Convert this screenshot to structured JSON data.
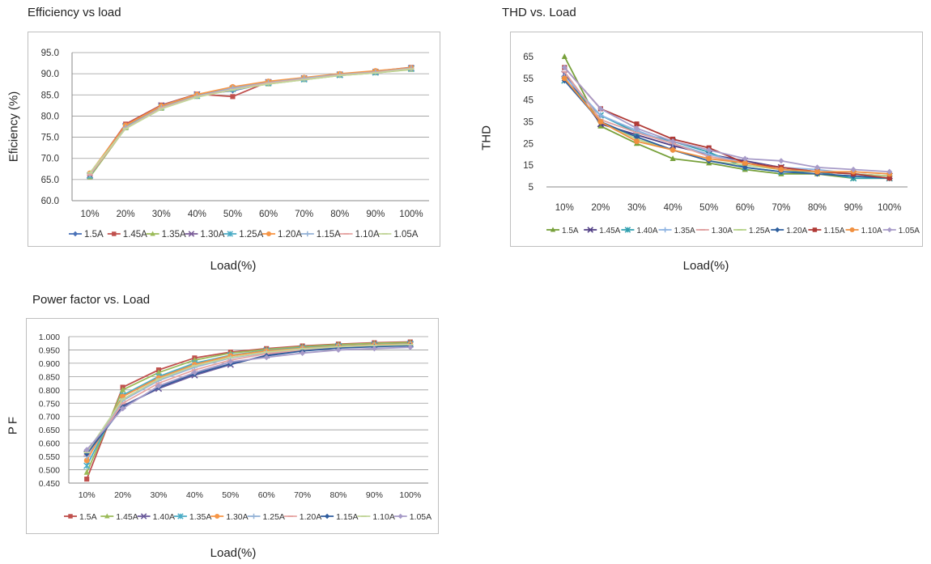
{
  "chart_data": [
    {
      "type": "line",
      "title": "Efficiency vs load",
      "xlabel": "Load(%)",
      "ylabel": "Eficiency (%)",
      "ylim": [
        60,
        95
      ],
      "ytick_step": 5,
      "ytick_labels": [
        "60.0",
        "65.0",
        "70.0",
        "75.0",
        "80.0",
        "85.0",
        "90.0",
        "95.0"
      ],
      "categories": [
        "10%",
        "20%",
        "30%",
        "40%",
        "50%",
        "60%",
        "70%",
        "80%",
        "90%",
        "100%"
      ],
      "grid": true,
      "legend": "bottom",
      "series": [
        {
          "name": "1.5A",
          "color": "#4a72b8",
          "marker": "diamond",
          "values": [
            65.8,
            77.8,
            82.3,
            85.0,
            86.0,
            87.8,
            88.8,
            89.7,
            90.5,
            91.3
          ]
        },
        {
          "name": "1.45A",
          "color": "#c0504d",
          "marker": "square",
          "values": [
            66.3,
            78.1,
            82.6,
            85.2,
            84.6,
            88.1,
            89.0,
            89.9,
            90.6,
            91.5
          ]
        },
        {
          "name": "1.35A",
          "color": "#9bbb59",
          "marker": "triangle",
          "values": [
            65.6,
            77.2,
            81.8,
            84.6,
            86.3,
            87.6,
            88.6,
            89.6,
            90.2,
            91.0
          ]
        },
        {
          "name": "1.30A",
          "color": "#7a5c98",
          "marker": "x",
          "values": [
            66.0,
            77.6,
            82.5,
            85.1,
            86.5,
            88.0,
            88.9,
            89.8,
            90.4,
            91.3
          ]
        },
        {
          "name": "1.25A",
          "color": "#4bacc6",
          "marker": "star",
          "values": [
            65.9,
            77.5,
            82.1,
            84.8,
            86.4,
            87.8,
            88.7,
            89.7,
            90.3,
            91.2
          ]
        },
        {
          "name": "1.20A",
          "color": "#f79646",
          "marker": "circle",
          "values": [
            66.5,
            77.8,
            82.4,
            85.1,
            86.9,
            88.2,
            89.1,
            90.0,
            90.7,
            91.4
          ]
        },
        {
          "name": "1.15A",
          "color": "#95b3d7",
          "marker": "plus",
          "values": [
            66.2,
            77.3,
            82.0,
            84.7,
            86.6,
            87.9,
            88.9,
            89.8,
            90.4,
            91.3
          ]
        },
        {
          "name": "1.10A",
          "color": "#e6a5a3",
          "marker": "dash",
          "values": [
            66.1,
            77.1,
            81.9,
            84.6,
            86.3,
            87.8,
            88.7,
            89.7,
            90.3,
            91.2
          ]
        },
        {
          "name": "1.05A",
          "color": "#c3d69b",
          "marker": "dash",
          "values": [
            66.6,
            77.0,
            81.7,
            84.5,
            86.2,
            87.6,
            88.6,
            89.6,
            90.2,
            91.1
          ]
        }
      ]
    },
    {
      "type": "line",
      "title": "THD vs. Load",
      "xlabel": "Load(%)",
      "ylabel": "THD",
      "ylim": [
        5,
        65
      ],
      "ytick_step": 10,
      "ytick_labels": [
        "5",
        "15",
        "25",
        "35",
        "45",
        "55",
        "65"
      ],
      "categories": [
        "10%",
        "20%",
        "30%",
        "40%",
        "50%",
        "60%",
        "70%",
        "80%",
        "90%",
        "100%"
      ],
      "grid": false,
      "legend": "bottom",
      "series": [
        {
          "name": "1.5A",
          "color": "#77a03a",
          "marker": "triangle",
          "values": [
            65,
            33,
            25,
            18,
            16,
            13,
            11,
            11,
            9,
            9
          ]
        },
        {
          "name": "1.45A",
          "color": "#4f3d83",
          "marker": "x",
          "values": [
            57,
            34,
            29,
            24,
            20,
            17,
            14,
            12,
            11,
            10
          ]
        },
        {
          "name": "1.40A",
          "color": "#31a0b0",
          "marker": "star",
          "values": [
            54,
            38,
            30,
            26,
            21,
            14,
            12,
            12,
            9,
            9
          ]
        },
        {
          "name": "1.35A",
          "color": "#8db3e2",
          "marker": "plus",
          "values": [
            56,
            38,
            31,
            25,
            20,
            16,
            14,
            13,
            11,
            10
          ]
        },
        {
          "name": "1.30A",
          "color": "#e0a0a0",
          "marker": "dash",
          "values": [
            58,
            36,
            30,
            25,
            19,
            16,
            14,
            12,
            11,
            10
          ]
        },
        {
          "name": "1.25A",
          "color": "#b7d38a",
          "marker": "dash",
          "values": [
            55,
            35,
            27,
            22,
            17,
            15,
            13,
            12,
            11,
            10
          ]
        },
        {
          "name": "1.20A",
          "color": "#2e5f9e",
          "marker": "diamond",
          "values": [
            54,
            35,
            28,
            22,
            17,
            14,
            12,
            11,
            10,
            9
          ]
        },
        {
          "name": "1.15A",
          "color": "#b03a36",
          "marker": "square",
          "values": [
            60,
            41,
            34,
            27,
            23,
            16,
            14,
            12,
            11,
            9
          ]
        },
        {
          "name": "1.10A",
          "color": "#f09040",
          "marker": "circle",
          "values": [
            55,
            35,
            26,
            22,
            18,
            16,
            13,
            12,
            12,
            11
          ]
        },
        {
          "name": "1.05A",
          "color": "#a79bc8",
          "marker": "diamond",
          "values": [
            60,
            41,
            32,
            26,
            22,
            18,
            17,
            14,
            13,
            12
          ]
        }
      ]
    },
    {
      "type": "line",
      "title": "Power factor vs. Load",
      "xlabel": "Load(%)",
      "ylabel": "PF",
      "ylim": [
        0.45,
        1.0
      ],
      "ytick_step": 0.05,
      "ytick_labels": [
        "0.450",
        "0.500",
        "0.550",
        "0.600",
        "0.650",
        "0.700",
        "0.750",
        "0.800",
        "0.850",
        "0.900",
        "0.950",
        "1.000"
      ],
      "categories": [
        "10%",
        "20%",
        "30%",
        "40%",
        "50%",
        "60%",
        "70%",
        "80%",
        "90%",
        "100%"
      ],
      "grid": true,
      "legend": "bottom",
      "series": [
        {
          "name": "1.5A",
          "color": "#c0504d",
          "marker": "square",
          "values": [
            0.465,
            0.81,
            0.875,
            0.92,
            0.942,
            0.955,
            0.965,
            0.972,
            0.977,
            0.98
          ]
        },
        {
          "name": "1.45A",
          "color": "#9bbb59",
          "marker": "triangle",
          "values": [
            0.49,
            0.8,
            0.865,
            0.912,
            0.938,
            0.952,
            0.962,
            0.97,
            0.975,
            0.978
          ]
        },
        {
          "name": "1.40A",
          "color": "#6a5a9b",
          "marker": "x",
          "values": [
            0.56,
            0.74,
            0.805,
            0.855,
            0.895,
            0.93,
            0.95,
            0.96,
            0.966,
            0.97
          ]
        },
        {
          "name": "1.35A",
          "color": "#4bacc6",
          "marker": "star",
          "values": [
            0.515,
            0.78,
            0.85,
            0.9,
            0.93,
            0.948,
            0.958,
            0.965,
            0.97,
            0.973
          ]
        },
        {
          "name": "1.30A",
          "color": "#f79646",
          "marker": "circle",
          "values": [
            0.535,
            0.775,
            0.845,
            0.895,
            0.928,
            0.946,
            0.956,
            0.964,
            0.969,
            0.972
          ]
        },
        {
          "name": "1.25A",
          "color": "#95b3d7",
          "marker": "plus",
          "values": [
            0.55,
            0.76,
            0.835,
            0.885,
            0.92,
            0.94,
            0.953,
            0.962,
            0.967,
            0.97
          ]
        },
        {
          "name": "1.20A",
          "color": "#e6a5a3",
          "marker": "dash",
          "values": [
            0.555,
            0.75,
            0.825,
            0.875,
            0.912,
            0.936,
            0.95,
            0.96,
            0.965,
            0.968
          ]
        },
        {
          "name": "1.15A",
          "color": "#2f5d9e",
          "marker": "diamond",
          "values": [
            0.56,
            0.735,
            0.81,
            0.86,
            0.898,
            0.928,
            0.946,
            0.957,
            0.962,
            0.966
          ]
        },
        {
          "name": "1.10A",
          "color": "#c3d69b",
          "marker": "dash",
          "values": [
            0.565,
            0.765,
            0.84,
            0.89,
            0.922,
            0.942,
            0.954,
            0.962,
            0.967,
            0.97
          ]
        },
        {
          "name": "1.05A",
          "color": "#a79bc8",
          "marker": "diamond",
          "values": [
            0.575,
            0.73,
            0.815,
            0.865,
            0.905,
            0.922,
            0.938,
            0.95,
            0.955,
            0.96
          ]
        }
      ]
    }
  ]
}
